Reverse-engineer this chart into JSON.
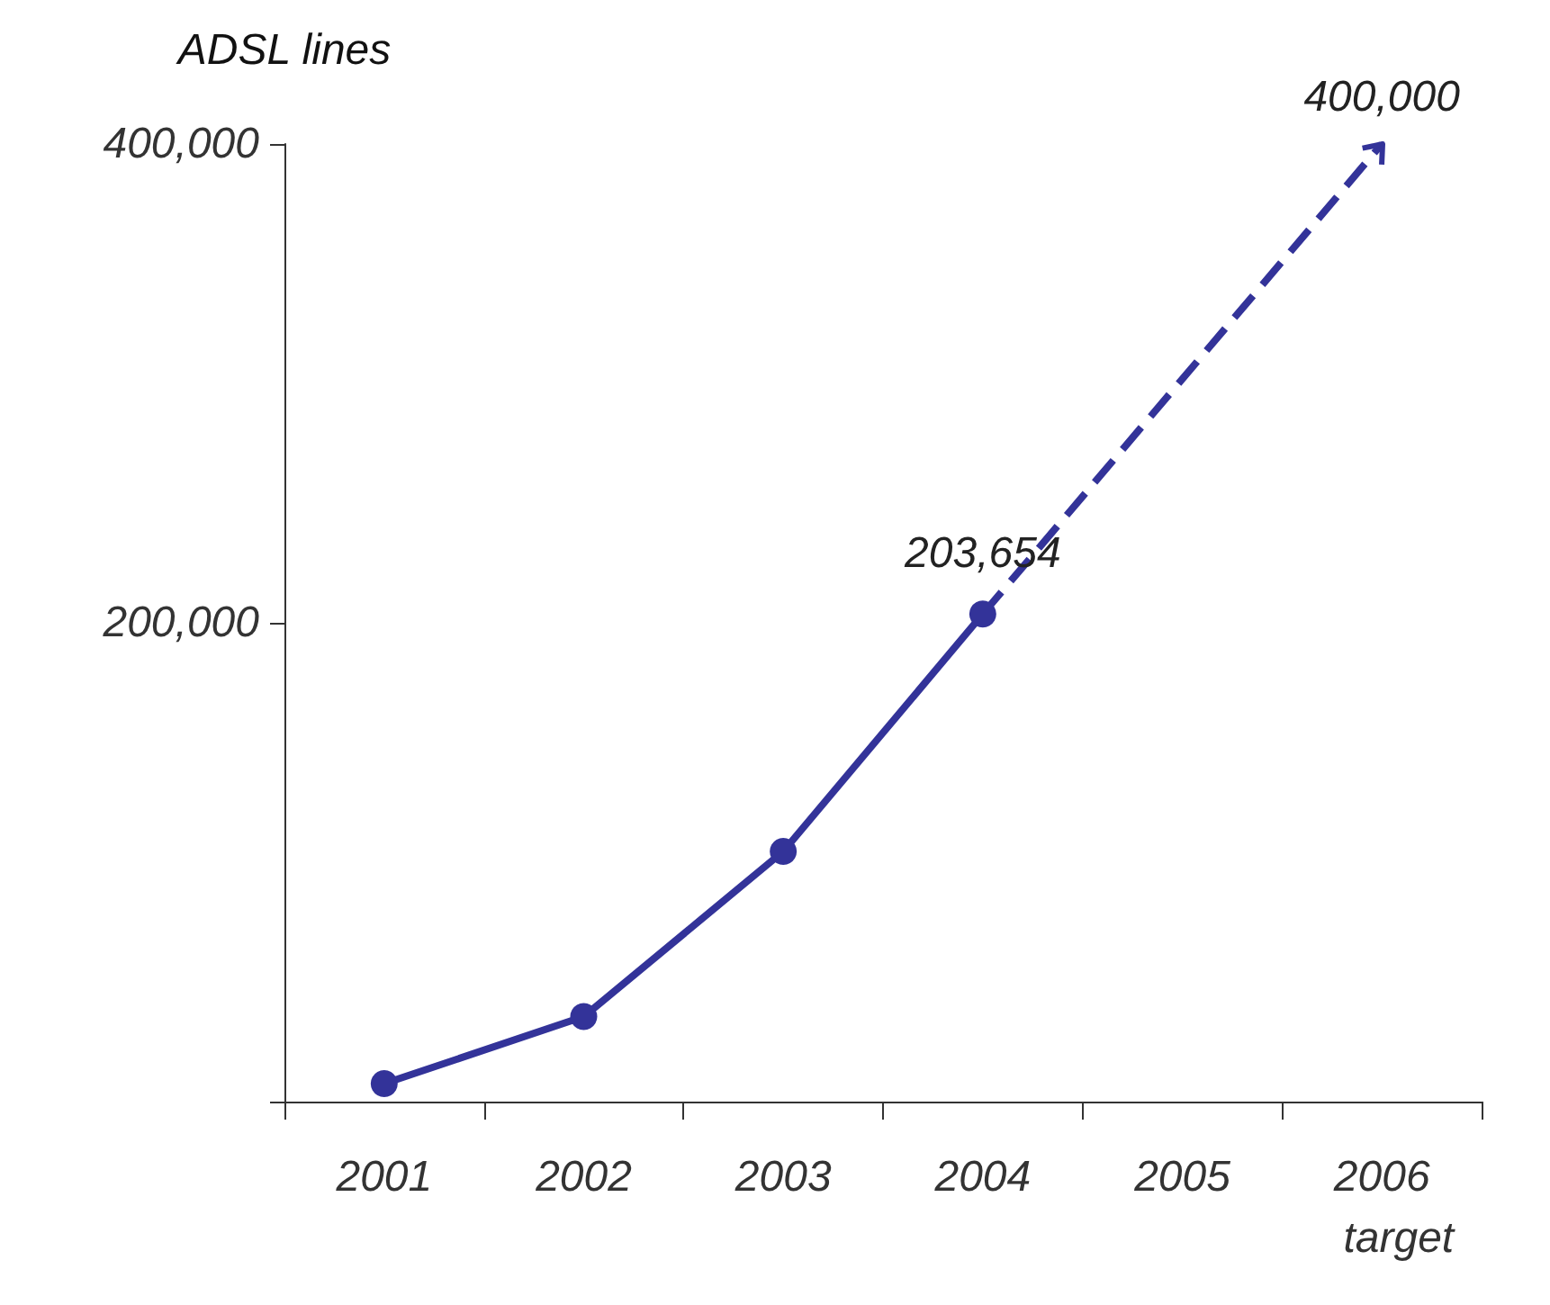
{
  "chart_data": {
    "type": "line",
    "ylabel": "ADSL lines",
    "categories": [
      "2001",
      "2002",
      "2003",
      "2004",
      "2005",
      "2006"
    ],
    "ylim": [
      0,
      400000
    ],
    "yticks": [
      {
        "value": 0,
        "label": null
      },
      {
        "value": 200000,
        "label": "200,000"
      },
      {
        "value": 400000,
        "label": "400,000"
      }
    ],
    "annotations": [
      "target"
    ],
    "series": [
      {
        "color": "#333399",
        "values": [
          7500,
          35500,
          104500,
          203654,
          null,
          null
        ],
        "value_labels": [
          null,
          null,
          null,
          "203,654",
          null,
          null
        ],
        "marker": "circle",
        "line_style": "solid"
      },
      {
        "color": "#333399",
        "values": [
          null,
          null,
          null,
          203654,
          null,
          400000
        ],
        "value_labels": [
          null,
          null,
          null,
          null,
          null,
          "400,000"
        ],
        "marker": "none",
        "line_style": "dashed"
      }
    ]
  }
}
